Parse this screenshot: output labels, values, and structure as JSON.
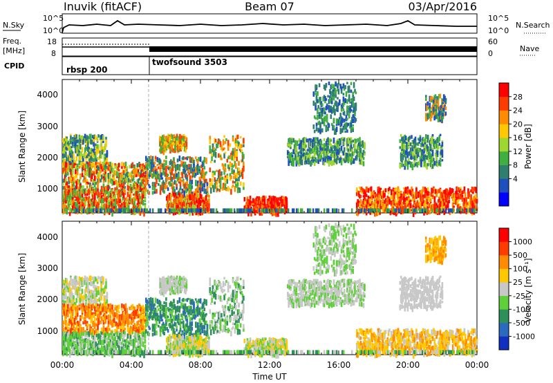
{
  "header": {
    "station": "Inuvik (fitACF)",
    "beam": "Beam 07",
    "date": "03/Apr/2016"
  },
  "summary_panels": {
    "nsky_label": "N.Sky",
    "nsky_ticks": [
      "10^5",
      "10^0"
    ],
    "nsearch_label": "N.Search",
    "nsearch_ticks": [
      "10^5",
      "10^0"
    ],
    "freq_label_1": "Freq.",
    "freq_label_2": "[MHz]",
    "freq_ticks": [
      "18",
      "8"
    ],
    "nave_label": "Nave",
    "nave_ticks": [
      "60",
      "0"
    ],
    "cpid_label": "CPID",
    "cpid_segments": [
      {
        "name": "rbsp 200",
        "start_hour": 0,
        "end_hour": 5
      },
      {
        "name": "twofsound 3503",
        "start_hour": 5,
        "end_hour": 24
      }
    ]
  },
  "chart_data": [
    {
      "type": "heatmap",
      "title": "Power",
      "ylabel": "Slant Range [km]",
      "xlabel": "Time UT",
      "xlim_hours": [
        0,
        24
      ],
      "ylim": [
        180,
        4500
      ],
      "y_ticks": [
        "4000",
        "3000",
        "2000",
        "1000"
      ],
      "colorbar_label": "Power [dB]",
      "colorbar_ticks": [
        "28",
        "24",
        "20",
        "16",
        "12",
        "8",
        "4"
      ],
      "colors": [
        "#0000ff",
        "#1f4fbf",
        "#2f7f6f",
        "#3faf3f",
        "#9fd62f",
        "#ffc800",
        "#ff8c00",
        "#ff3c00",
        "#ff0000"
      ]
    },
    {
      "type": "heatmap",
      "title": "Velocity",
      "ylabel": "Slant Range [km]",
      "xlabel": "Time UT",
      "xlim_hours": [
        0,
        24
      ],
      "ylim": [
        180,
        4500
      ],
      "y_ticks": [
        "4000",
        "3000",
        "2000",
        "1000"
      ],
      "colorbar_label": "Velocity [m s⁻¹]",
      "colorbar_ticks": [
        "1000",
        "500",
        "100",
        "25",
        "-25",
        "-100",
        "-500",
        "-1000"
      ],
      "colors": [
        "#1030c0",
        "#2a6abf",
        "#2e8f5a",
        "#5fd03a",
        "#c8c8c8",
        "#ffc800",
        "#ff8c00",
        "#ff3c00",
        "#ff0000"
      ]
    }
  ],
  "time_axis": {
    "ticks": [
      "00:00",
      "04:00",
      "08:00",
      "12:00",
      "16:00",
      "20:00",
      "00:00"
    ],
    "label": "Time UT"
  }
}
